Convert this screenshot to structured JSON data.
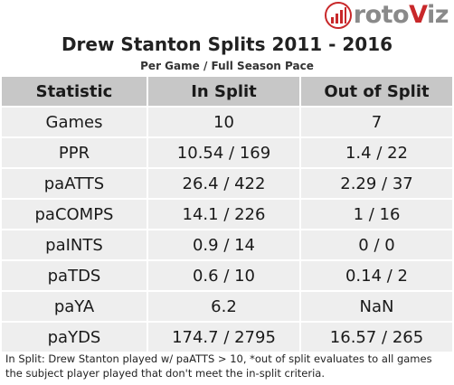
{
  "logo": {
    "part1": "roto",
    "part2": "V",
    "part3": "iz"
  },
  "title": "Drew Stanton Splits 2011 - 2016",
  "subtitle": "Per Game / Full Season Pace",
  "table": {
    "headers": [
      "Statistic",
      "In Split",
      "Out of Split"
    ],
    "rows": [
      [
        "Games",
        "10",
        "7"
      ],
      [
        "PPR",
        "10.54 / 169",
        "1.4 / 22"
      ],
      [
        "paATTS",
        "26.4 / 422",
        "2.29 / 37"
      ],
      [
        "paCOMPS",
        "14.1 / 226",
        "1 / 16"
      ],
      [
        "paINTS",
        "0.9 / 14",
        "0 / 0"
      ],
      [
        "paTDS",
        "0.6 / 10",
        "0.14 / 2"
      ],
      [
        "paYA",
        "6.2",
        "NaN"
      ],
      [
        "paYDS",
        "174.7 / 2795",
        "16.57 / 265"
      ]
    ]
  },
  "footnote": "In Split: Drew Stanton played w/ paATTS > 10,  *out of split evaluates to all games the subject player played that don't meet the in-split criteria.",
  "colors": {
    "header_bg": "#c7c7c7",
    "row_bg": "#eeeeee",
    "brand_red": "#c8282a",
    "brand_gray": "#8a8a8a"
  }
}
